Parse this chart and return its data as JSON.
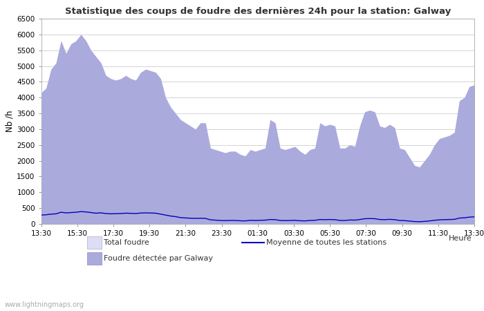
{
  "title": "Statistique des coups de foudre des dernières 24h pour la station: Galway",
  "xlabel": "Heure",
  "ylabel": "Nb /h",
  "ylim": [
    0,
    6500
  ],
  "yticks": [
    0,
    500,
    1000,
    1500,
    2000,
    2500,
    3000,
    3500,
    4000,
    4500,
    5000,
    5500,
    6000,
    6500
  ],
  "x_labels": [
    "13:30",
    "15:30",
    "17:30",
    "19:30",
    "21:30",
    "23:30",
    "01:30",
    "03:30",
    "05:30",
    "07:30",
    "09:30",
    "11:30",
    "13:30"
  ],
  "background_color": "#ffffff",
  "plot_bg_color": "#ffffff",
  "grid_color": "#cccccc",
  "total_foudre_color": "#ddddf5",
  "galway_color": "#aaaadd",
  "moyenne_color": "#0000bb",
  "watermark": "www.lightningmaps.org",
  "total_foudre_values": [
    4150,
    4300,
    4900,
    5100,
    5800,
    5400,
    5700,
    5800,
    6000,
    5800,
    5500,
    5300,
    5100,
    4700,
    4600,
    4550,
    4600,
    4700,
    4600,
    4550,
    4800,
    4900,
    4850,
    4800,
    4600,
    4000,
    3700,
    3500,
    3300,
    3200,
    3100,
    3000,
    3200,
    3200,
    2400,
    2350,
    2300,
    2250,
    2300,
    2300,
    2200,
    2150,
    2350,
    2300,
    2350,
    2400,
    3300,
    3200,
    2400,
    2350,
    2400,
    2450,
    2300,
    2200,
    2350,
    2400,
    3200,
    3100,
    3150,
    3100,
    2400,
    2400,
    2500,
    2450,
    3100,
    3550,
    3600,
    3550,
    3100,
    3050,
    3150,
    3050,
    2400,
    2350,
    2100,
    1850,
    1800,
    2000,
    2200,
    2500,
    2700,
    2750,
    2800,
    2900,
    3900,
    4000,
    4350,
    4400
  ],
  "galway_values": [
    4150,
    4300,
    4900,
    5100,
    5800,
    5400,
    5700,
    5800,
    6000,
    5800,
    5500,
    5300,
    5100,
    4700,
    4600,
    4550,
    4600,
    4700,
    4600,
    4550,
    4800,
    4900,
    4850,
    4800,
    4600,
    4000,
    3700,
    3500,
    3300,
    3200,
    3100,
    3000,
    3200,
    3200,
    2400,
    2350,
    2300,
    2250,
    2300,
    2300,
    2200,
    2150,
    2350,
    2300,
    2350,
    2400,
    3300,
    3200,
    2400,
    2350,
    2400,
    2450,
    2300,
    2200,
    2350,
    2400,
    3200,
    3100,
    3150,
    3100,
    2400,
    2400,
    2500,
    2450,
    3100,
    3550,
    3600,
    3550,
    3100,
    3050,
    3150,
    3050,
    2400,
    2350,
    2100,
    1850,
    1800,
    2000,
    2200,
    2500,
    2700,
    2750,
    2800,
    2900,
    3900,
    4000,
    4350,
    4400
  ],
  "moyenne_values": [
    280,
    290,
    310,
    320,
    370,
    350,
    360,
    370,
    390,
    380,
    360,
    340,
    350,
    330,
    320,
    325,
    330,
    340,
    335,
    330,
    345,
    350,
    345,
    340,
    310,
    280,
    250,
    230,
    200,
    190,
    180,
    175,
    180,
    175,
    130,
    120,
    110,
    105,
    110,
    110,
    100,
    95,
    115,
    110,
    115,
    120,
    140,
    135,
    110,
    105,
    110,
    115,
    100,
    95,
    110,
    115,
    140,
    135,
    140,
    135,
    110,
    110,
    125,
    120,
    140,
    165,
    170,
    165,
    140,
    135,
    145,
    135,
    110,
    105,
    90,
    75,
    70,
    80,
    95,
    115,
    130,
    135,
    140,
    145,
    185,
    195,
    215,
    225
  ]
}
